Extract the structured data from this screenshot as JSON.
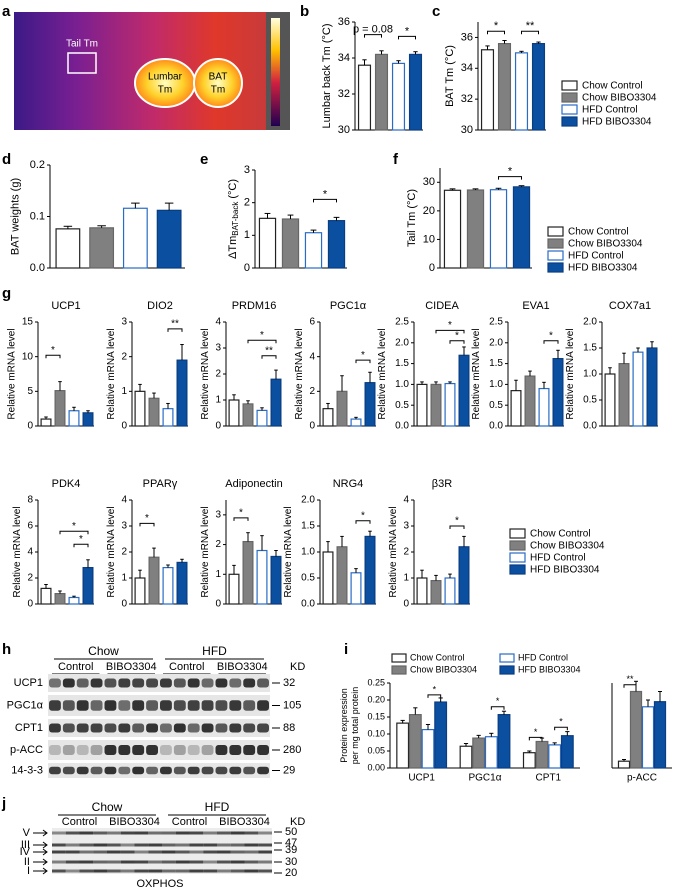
{
  "panel_labels": [
    "a",
    "b",
    "c",
    "d",
    "e",
    "f",
    "g",
    "h",
    "i",
    "j"
  ],
  "thermal_labels": {
    "tail": "Tail Tm",
    "lumbar": [
      "Lumbar",
      "Tm"
    ],
    "bat": [
      "BAT",
      "Tm"
    ]
  },
  "legend": {
    "names": [
      "Chow Control",
      "Chow BIBO3304",
      "HFD Control",
      "HFD BIBO3304"
    ],
    "colors": [
      "#ffffff",
      "#808080",
      "#ffffff",
      "#0b4fa0"
    ],
    "edgecolors": [
      "#222222",
      "#666666",
      "#2a6cc4",
      "#0b3d80"
    ]
  },
  "chart_data": [
    {
      "type": "bar",
      "ylabel": "Lumbar back Tm (°C)",
      "ylim": [
        30,
        36
      ],
      "yticks": [
        30,
        32,
        34,
        36
      ],
      "values": [
        33.6,
        34.2,
        33.7,
        34.2
      ],
      "errors": [
        0.3,
        0.2,
        0.15,
        0.15
      ],
      "brackets": [
        {
          "label": "p = 0.08",
          "from": 0,
          "to": 1,
          "y": 35.3
        },
        {
          "label": "*",
          "from": 2,
          "to": 3,
          "y": 35.2
        }
      ]
    },
    {
      "type": "bar",
      "ylabel": "BAT Tm (°C)",
      "ylim": [
        30,
        37
      ],
      "yticks": [
        30,
        32,
        34,
        36
      ],
      "values": [
        35.2,
        35.6,
        35.0,
        35.6
      ],
      "errors": [
        0.25,
        0.2,
        0.1,
        0.1
      ],
      "brackets": [
        {
          "label": "*",
          "from": 0,
          "to": 1,
          "y": 36.4
        },
        {
          "label": "**",
          "from": 2,
          "to": 3,
          "y": 36.4
        }
      ]
    },
    {
      "type": "bar",
      "ylabel": "BAT weights (g)",
      "ylim": [
        0,
        0.2
      ],
      "yticks": [
        {
          "value": 0,
          "label": "0.0"
        },
        0.1,
        0.2
      ],
      "values": [
        0.076,
        0.078,
        0.116,
        0.112
      ],
      "errors": [
        0.005,
        0.004,
        0.01,
        0.014
      ],
      "brackets": []
    },
    {
      "type": "bar",
      "ylabel": "ΔTm",
      "ylabel_sub": "BAT-back",
      "ylabel_unit": "(°C)",
      "ylim": [
        0,
        3
      ],
      "yticks": [
        0,
        1,
        2,
        3
      ],
      "values": [
        1.52,
        1.5,
        1.08,
        1.45
      ],
      "errors": [
        0.15,
        0.12,
        0.08,
        0.1
      ],
      "brackets": [
        {
          "label": "*",
          "from": 2,
          "to": 3,
          "y": 2.1
        }
      ]
    },
    {
      "type": "bar",
      "ylabel": "Tail Tm (°C)",
      "ylim": [
        0,
        35
      ],
      "yticks": [
        0,
        10,
        20,
        30
      ],
      "values": [
        27.2,
        27.3,
        27.4,
        28.4
      ],
      "errors": [
        0.5,
        0.4,
        0.5,
        0.4
      ],
      "brackets": [
        {
          "label": "*",
          "from": 2,
          "to": 3,
          "y": 32
        }
      ]
    },
    {
      "type": "bar",
      "title": "UCP1",
      "ylabel": "Relative mRNA level",
      "ylim": [
        0,
        15
      ],
      "yticks": [
        0,
        5,
        10,
        15
      ],
      "values": [
        1.0,
        5.1,
        2.2,
        1.9
      ],
      "errors": [
        0.3,
        1.3,
        0.5,
        0.3
      ],
      "brackets": [
        {
          "label": "*",
          "from": 0,
          "to": 1,
          "y": 10.2
        }
      ]
    },
    {
      "type": "bar",
      "title": "DIO2",
      "ylabel": "Relative mRNA level",
      "ylim": [
        0,
        3
      ],
      "yticks": [
        0,
        1,
        2,
        3
      ],
      "values": [
        1.0,
        0.8,
        0.5,
        1.9
      ],
      "errors": [
        0.2,
        0.15,
        0.15,
        0.45
      ],
      "brackets": [
        {
          "label": "**",
          "from": 2,
          "to": 3,
          "y": 2.8
        }
      ]
    },
    {
      "type": "bar",
      "title": "PRDM16",
      "ylabel": "Relative mRNA level",
      "ylim": [
        0,
        4
      ],
      "yticks": [
        0,
        1,
        2,
        3,
        4
      ],
      "values": [
        1.0,
        0.85,
        0.6,
        1.8
      ],
      "errors": [
        0.2,
        0.12,
        0.1,
        0.35
      ],
      "brackets": [
        {
          "label": "*",
          "from": 1,
          "to": 3,
          "y": 3.3
        },
        {
          "label": "**",
          "from": 2,
          "to": 3,
          "y": 2.7
        }
      ]
    },
    {
      "type": "bar",
      "title": "PGC1α",
      "ylabel": "Relative mRNA level",
      "ylim": [
        0,
        6
      ],
      "yticks": [
        0,
        2,
        4,
        6
      ],
      "values": [
        1.0,
        2.0,
        0.4,
        2.5
      ],
      "errors": [
        0.3,
        0.9,
        0.1,
        0.6
      ],
      "brackets": [
        {
          "label": "*",
          "from": 2,
          "to": 3,
          "y": 3.8
        }
      ]
    },
    {
      "type": "bar",
      "title": "CIDEA",
      "ylabel": "Relative mRNA level",
      "ylim": [
        0,
        2.5
      ],
      "yticks": [
        {
          "value": 0,
          "label": "0.0"
        },
        0.5,
        {
          "value": 1,
          "label": "1.0"
        },
        1.5,
        {
          "value": 2,
          "label": "2.0"
        },
        2.5
      ],
      "values": [
        1.0,
        1.0,
        1.02,
        1.7
      ],
      "errors": [
        0.06,
        0.06,
        0.04,
        0.2
      ],
      "brackets": [
        {
          "label": "*",
          "from": 1,
          "to": 3,
          "y": 2.3
        },
        {
          "label": "*",
          "from": 2,
          "to": 3,
          "y": 2.05
        }
      ]
    },
    {
      "type": "bar",
      "title": "EVA1",
      "ylabel": "Relative mRNA level",
      "ylim": [
        0,
        2.5
      ],
      "yticks": [
        {
          "value": 0,
          "label": "0.0"
        },
        0.5,
        {
          "value": 1,
          "label": "1.0"
        },
        1.5,
        {
          "value": 2,
          "label": "2.0"
        },
        2.5
      ],
      "values": [
        0.85,
        1.2,
        0.9,
        1.62
      ],
      "errors": [
        0.25,
        0.12,
        0.15,
        0.2
      ],
      "brackets": [
        {
          "label": "*",
          "from": 2,
          "to": 3,
          "y": 2.05
        }
      ]
    },
    {
      "type": "bar",
      "title": "COX7a1",
      "ylabel": "Relative mRNA level",
      "ylim": [
        0,
        2
      ],
      "yticks": [
        {
          "value": 0,
          "label": "0.0"
        },
        0.5,
        {
          "value": 1,
          "label": "1.0"
        },
        1.5,
        {
          "value": 2,
          "label": "2.0"
        }
      ],
      "values": [
        1.0,
        1.2,
        1.42,
        1.5
      ],
      "errors": [
        0.12,
        0.2,
        0.08,
        0.12
      ],
      "brackets": []
    },
    {
      "type": "bar",
      "title": "PDK4",
      "ylabel": "Relative mRNA level",
      "ylim": [
        0,
        8
      ],
      "yticks": [
        0,
        2,
        4,
        6,
        8
      ],
      "values": [
        1.2,
        0.8,
        0.5,
        2.8
      ],
      "errors": [
        0.3,
        0.2,
        0.1,
        0.6
      ],
      "brackets": [
        {
          "label": "*",
          "from": 1,
          "to": 3,
          "y": 5.6
        },
        {
          "label": "*",
          "from": 2,
          "to": 3,
          "y": 4.6
        }
      ]
    },
    {
      "type": "bar",
      "title": "PPARγ",
      "ylabel": "Relative mRNA level",
      "ylim": [
        0,
        4
      ],
      "yticks": [
        0,
        1,
        2,
        3,
        4
      ],
      "values": [
        1.0,
        1.8,
        1.4,
        1.6
      ],
      "errors": [
        0.3,
        0.35,
        0.1,
        0.12
      ],
      "brackets": [
        {
          "label": "*",
          "from": 0,
          "to": 1,
          "y": 3.1
        }
      ]
    },
    {
      "type": "bar",
      "title": "Adiponectin",
      "ylabel": "Relative mRNA level",
      "ylim": [
        0,
        3.5
      ],
      "yticks": [
        0,
        1,
        2,
        3
      ],
      "values": [
        1.0,
        2.1,
        1.8,
        1.6
      ],
      "errors": [
        0.3,
        0.3,
        0.5,
        0.2
      ],
      "brackets": [
        {
          "label": "*",
          "from": 0,
          "to": 1,
          "y": 2.9
        }
      ]
    },
    {
      "type": "bar",
      "title": "NRG4",
      "ylabel": "Relative mRNA level",
      "ylim": [
        0,
        2
      ],
      "yticks": [
        {
          "value": 0,
          "label": "0.0"
        },
        0.5,
        {
          "value": 1,
          "label": "1.0"
        },
        1.5,
        {
          "value": 2,
          "label": "2.0"
        }
      ],
      "values": [
        1.0,
        1.1,
        0.6,
        1.3
      ],
      "errors": [
        0.2,
        0.2,
        0.08,
        0.1
      ],
      "brackets": [
        {
          "label": "*",
          "from": 2,
          "to": 3,
          "y": 1.6
        }
      ]
    },
    {
      "type": "bar",
      "title": "β3R",
      "ylabel": "Relative mRNA level",
      "ylim": [
        0,
        4
      ],
      "yticks": [
        0,
        1,
        2,
        3,
        4
      ],
      "values": [
        1.0,
        0.9,
        1.0,
        2.2
      ],
      "errors": [
        0.3,
        0.2,
        0.15,
        0.4
      ],
      "brackets": [
        {
          "label": "*",
          "from": 2,
          "to": 3,
          "y": 3.0
        }
      ]
    },
    {
      "type": "grouped-bar",
      "ylabel": [
        "Protein expression",
        "per mg total protein"
      ],
      "ylim": [
        0,
        0.25
      ],
      "yticks": [
        {
          "value": 0,
          "label": "0.00"
        },
        0.05,
        {
          "value": 0.1,
          "label": "0.10"
        },
        0.15,
        {
          "value": 0.2,
          "label": "0.20"
        },
        0.25
      ],
      "categories": [
        "UCP1",
        "PGC1α",
        "CPT1"
      ],
      "series": [
        {
          "name": "Chow Control",
          "color": "#ffffff",
          "edgecolor": "#222222",
          "values": [
            0.132,
            0.064,
            0.045
          ],
          "errors": [
            0.008,
            0.008,
            0.005
          ]
        },
        {
          "name": "Chow BIBO3304",
          "color": "#808080",
          "edgecolor": "#666666",
          "values": [
            0.157,
            0.088,
            0.078
          ],
          "errors": [
            0.02,
            0.008,
            0.01
          ]
        },
        {
          "name": "HFD Control",
          "color": "#ffffff",
          "edgecolor": "#2a6cc4",
          "values": [
            0.113,
            0.092,
            0.068
          ],
          "errors": [
            0.015,
            0.01,
            0.006
          ]
        },
        {
          "name": "HFD BIBO3304",
          "color": "#0b4fa0",
          "edgecolor": "#0b3d80",
          "values": [
            0.194,
            0.157,
            0.095
          ],
          "errors": [
            0.012,
            0.01,
            0.012
          ]
        }
      ],
      "brackets": [
        {
          "label": "*",
          "category": 0,
          "from": 2,
          "to": 3,
          "y": 0.215
        },
        {
          "label": "*",
          "category": 1,
          "from": 2,
          "to": 3,
          "y": 0.18
        },
        {
          "label": "*",
          "category": 2,
          "from": 0,
          "to": 1,
          "y": 0.09
        },
        {
          "label": "*",
          "category": 2,
          "from": 2,
          "to": 3,
          "y": 0.12
        }
      ]
    },
    {
      "type": "grouped-bar",
      "ylim": [
        0,
        0.25
      ],
      "categories": [
        "p-ACC"
      ],
      "series": [
        {
          "color": "#ffffff",
          "edgecolor": "#222222",
          "values": [
            0.02
          ],
          "errors": [
            0.005
          ]
        },
        {
          "color": "#808080",
          "edgecolor": "#666666",
          "values": [
            0.225
          ],
          "errors": [
            0.03
          ]
        },
        {
          "color": "#ffffff",
          "edgecolor": "#2a6cc4",
          "values": [
            0.18
          ],
          "errors": [
            0.02
          ]
        },
        {
          "color": "#0b4fa0",
          "edgecolor": "#0b3d80",
          "values": [
            0.195
          ],
          "errors": [
            0.03
          ]
        }
      ],
      "brackets": [
        {
          "label": "**",
          "category": 0,
          "from": 0,
          "to": 1,
          "y": 0.245
        }
      ]
    }
  ],
  "blot_h": {
    "groups": [
      "Chow",
      "HFD"
    ],
    "subgroups": [
      "Control",
      "BIBO3304",
      "Control",
      "BIBO3304"
    ],
    "rows": [
      "UCP1",
      "PGC1α",
      "CPT1",
      "p-ACC",
      "14-3-3"
    ],
    "markers": [
      32,
      105,
      88,
      280,
      29
    ],
    "unit": "KD"
  },
  "blot_j": {
    "groups": [
      "Chow",
      "HFD"
    ],
    "subgroups": [
      "Control",
      "BIBO3304",
      "Control",
      "BIBO3304"
    ],
    "rows": [
      "V",
      "III",
      "IV",
      "II",
      "I"
    ],
    "markers": [
      50,
      47,
      39,
      30,
      20
    ],
    "unit": "KD",
    "caption": "OXPHOS"
  }
}
